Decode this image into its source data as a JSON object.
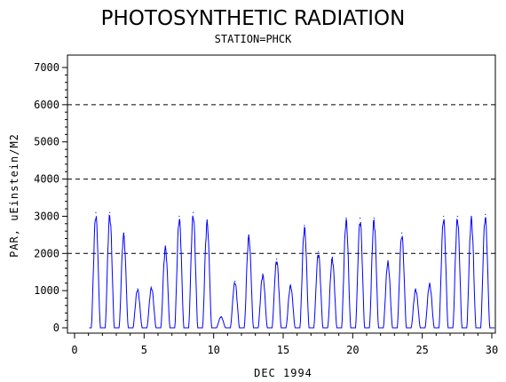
{
  "chart_data": {
    "type": "line",
    "title": "PHOTOSYNTHETIC RADIATION",
    "subtitle": "STATION=PHCK",
    "xlabel": "DEC 1994",
    "ylabel": "PAR, uEinstein/M2",
    "xlim": [
      0,
      30
    ],
    "ylim": [
      0,
      7000
    ],
    "xticks": [
      "0",
      "5",
      "10",
      "15",
      "20",
      "25",
      "30"
    ],
    "yticks": [
      "0",
      "1000",
      "2000",
      "3000",
      "4000",
      "5000",
      "6000",
      "7000"
    ],
    "reference_lines": [
      2000,
      4000,
      6000
    ],
    "grid": "dashed horizontal reference lines",
    "line_color": "#0000ff",
    "daily_peaks": [
      {
        "day": 1,
        "peak": 3100
      },
      {
        "day": 2,
        "peak": 3100
      },
      {
        "day": 3,
        "peak": 2550
      },
      {
        "day": 4,
        "peak": 1050
      },
      {
        "day": 5,
        "peak": 1100
      },
      {
        "day": 6,
        "peak": 2200
      },
      {
        "day": 7,
        "peak": 3000
      },
      {
        "day": 8,
        "peak": 3100
      },
      {
        "day": 9,
        "peak": 2900
      },
      {
        "day": 10,
        "peak": 300
      },
      {
        "day": 11,
        "peak": 1250
      },
      {
        "day": 12,
        "peak": 2500
      },
      {
        "day": 13,
        "peak": 1450
      },
      {
        "day": 14,
        "peak": 1850
      },
      {
        "day": 15,
        "peak": 1150
      },
      {
        "day": 16,
        "peak": 2750
      },
      {
        "day": 17,
        "peak": 2050
      },
      {
        "day": 18,
        "peak": 1900
      },
      {
        "day": 19,
        "peak": 2950
      },
      {
        "day": 20,
        "peak": 2950
      },
      {
        "day": 21,
        "peak": 2950
      },
      {
        "day": 22,
        "peak": 1800
      },
      {
        "day": 23,
        "peak": 2550
      },
      {
        "day": 24,
        "peak": 1050
      },
      {
        "day": 25,
        "peak": 1200
      },
      {
        "day": 26,
        "peak": 3000
      },
      {
        "day": 27,
        "peak": 3000
      },
      {
        "day": 28,
        "peak": 3000
      },
      {
        "day": 29,
        "peak": 3050
      }
    ]
  }
}
